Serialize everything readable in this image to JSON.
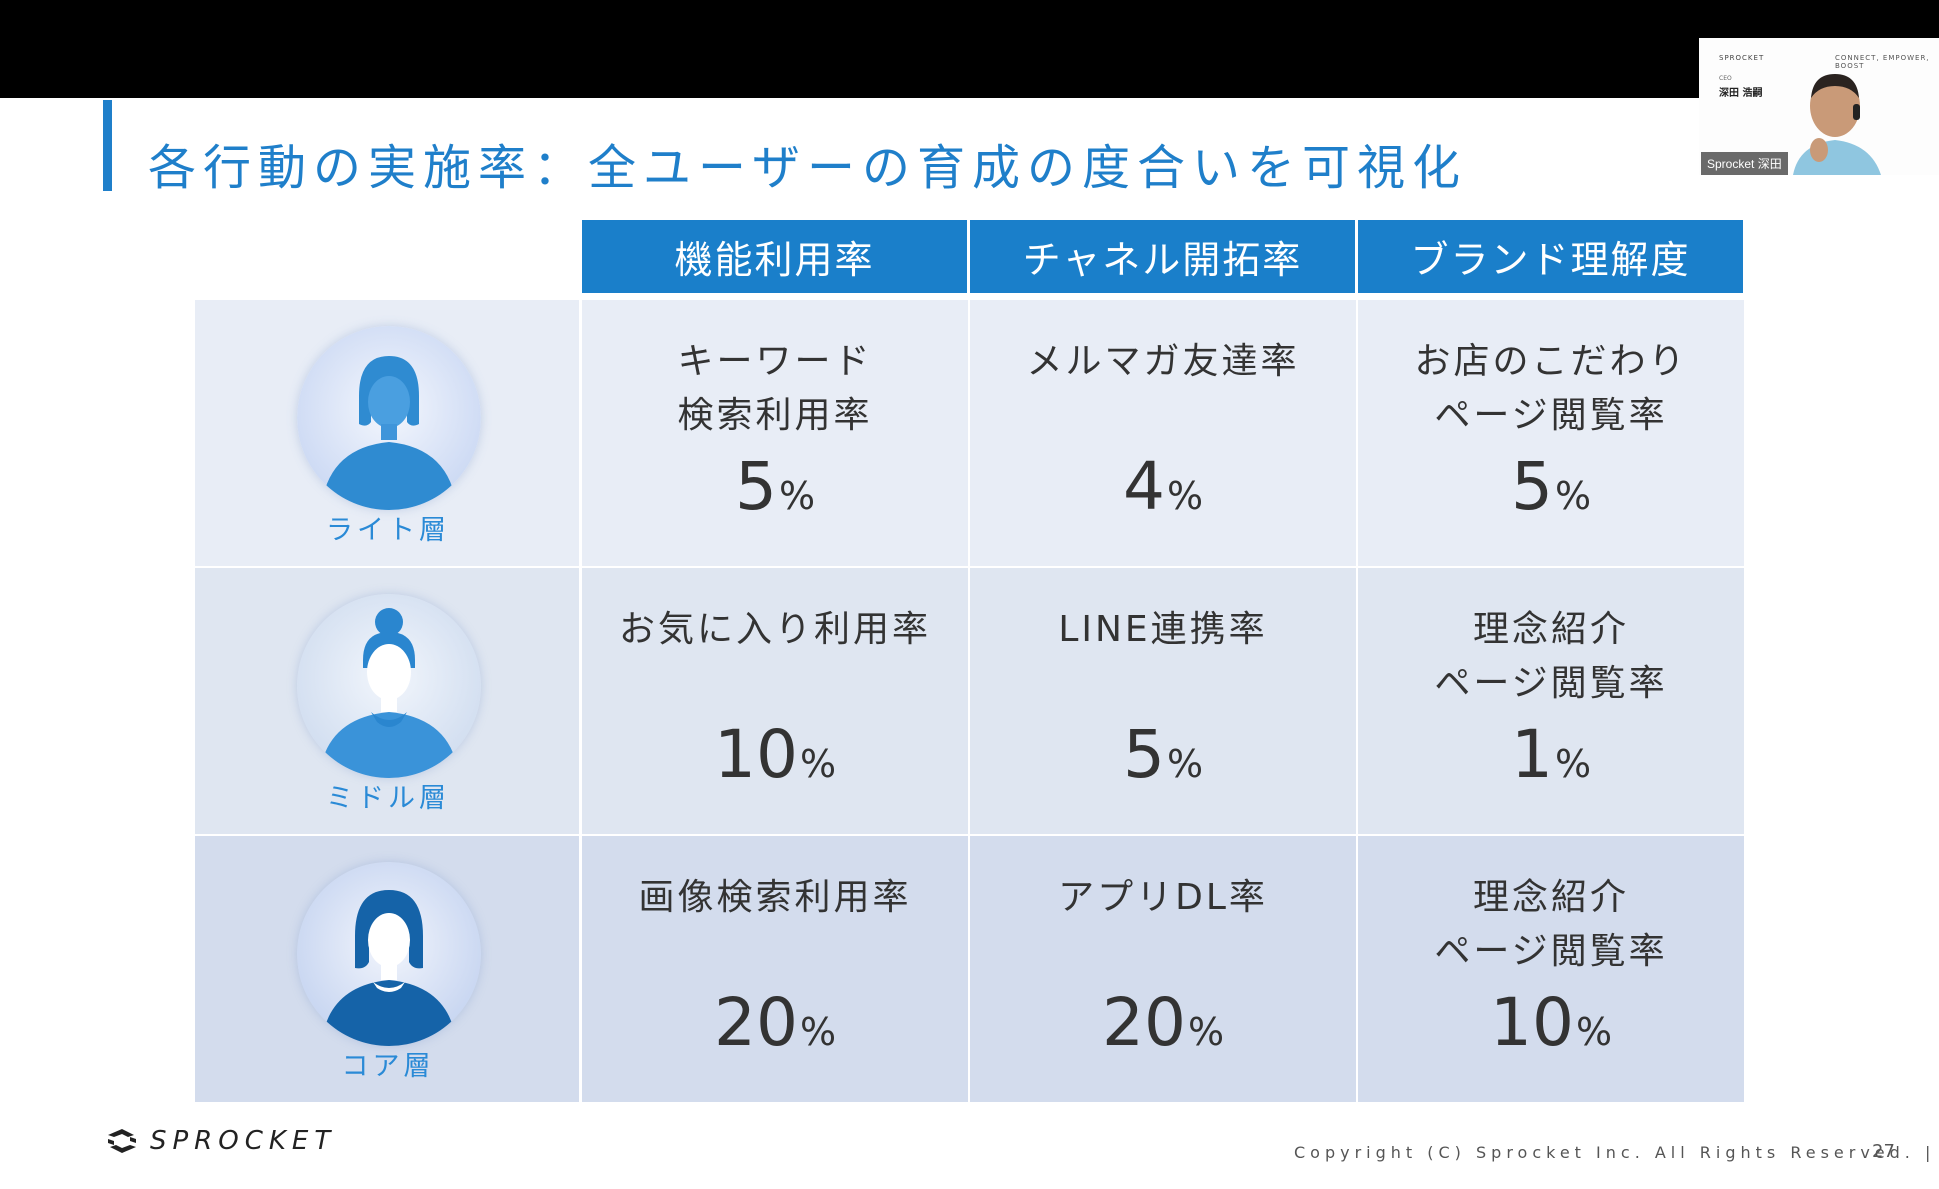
{
  "slide": {
    "title": "各行動の実施率：全ユーザーの育成の度合いを可視化",
    "columns": [
      "機能利用率",
      "チャネル開拓率",
      "ブランド理解度"
    ],
    "rows": [
      {
        "tier": "ライト層",
        "cells": [
          {
            "label": "キーワード\n検索利用率",
            "value": "5",
            "unit": "%"
          },
          {
            "label": "メルマガ友達率",
            "value": "4",
            "unit": "%"
          },
          {
            "label": "お店のこだわり\nページ閲覧率",
            "value": "5",
            "unit": "%"
          }
        ]
      },
      {
        "tier": "ミドル層",
        "cells": [
          {
            "label": "お気に入り利用率",
            "value": "10",
            "unit": "%"
          },
          {
            "label": "LINE連携率",
            "value": "5",
            "unit": "%"
          },
          {
            "label": "理念紹介\nページ閲覧率",
            "value": "1",
            "unit": "%"
          }
        ]
      },
      {
        "tier": "コア層",
        "cells": [
          {
            "label": "画像検索利用率",
            "value": "20",
            "unit": "%"
          },
          {
            "label": "アプリDL率",
            "value": "20",
            "unit": "%"
          },
          {
            "label": "理念紹介\nページ閲覧率",
            "value": "10",
            "unit": "%"
          }
        ]
      }
    ],
    "footer": {
      "logo_text": "SPROCKET",
      "copyright": "Copyright (C) Sprocket Inc. All Rights Reserved. |",
      "page_number": "27"
    }
  },
  "webcam": {
    "slide_logo": "SPROCKET",
    "slide_tagline": "CONNECT, EMPOWER, BOOST",
    "slide_role": "CEO",
    "slide_name": "深田 浩嗣",
    "name_tag": "Sprocket 深田"
  },
  "colors": {
    "accent": "#1f7fca",
    "row_light": "#e8edf6",
    "row_middle": "#dfe6f1",
    "row_core": "#d3dced"
  }
}
